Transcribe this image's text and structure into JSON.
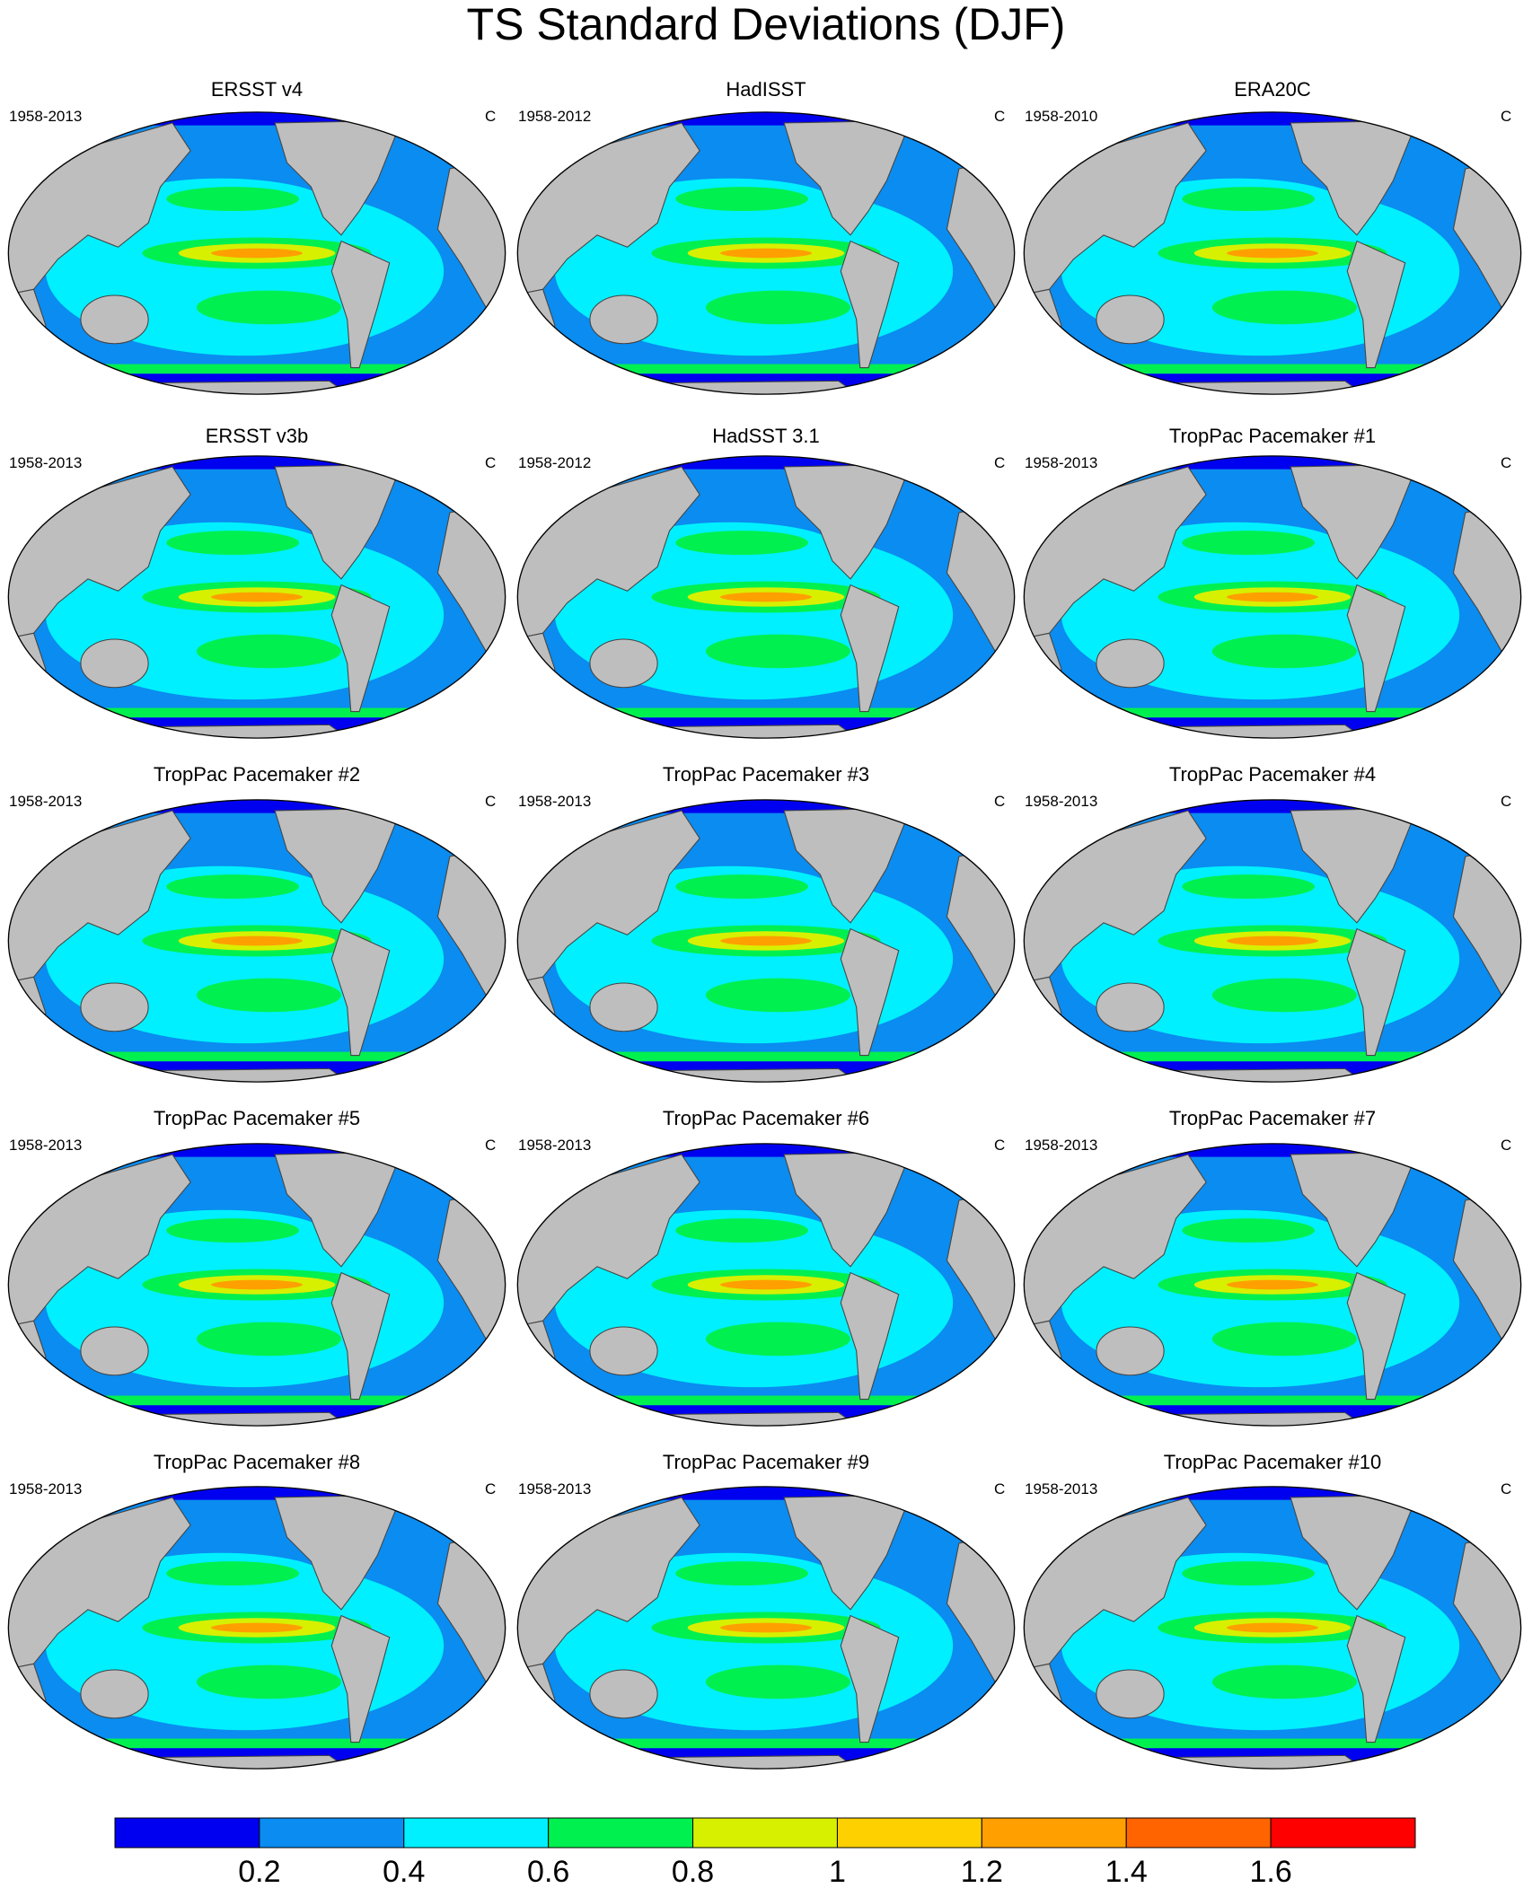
{
  "title": "TS Standard Deviations (DJF)",
  "panels": [
    {
      "title": "ERSST v4",
      "years": "1958-2013",
      "units": "C"
    },
    {
      "title": "HadISST",
      "years": "1958-2012",
      "units": "C"
    },
    {
      "title": "ERA20C",
      "years": "1958-2010",
      "units": "C"
    },
    {
      "title": "ERSST v3b",
      "years": "1958-2013",
      "units": "C"
    },
    {
      "title": "HadSST 3.1",
      "years": "1958-2012",
      "units": "C"
    },
    {
      "title": "TropPac Pacemaker #1",
      "years": "1958-2013",
      "units": "C"
    },
    {
      "title": "TropPac Pacemaker #2",
      "years": "1958-2013",
      "units": "C"
    },
    {
      "title": "TropPac Pacemaker #3",
      "years": "1958-2013",
      "units": "C"
    },
    {
      "title": "TropPac Pacemaker #4",
      "years": "1958-2013",
      "units": "C"
    },
    {
      "title": "TropPac Pacemaker #5",
      "years": "1958-2013",
      "units": "C"
    },
    {
      "title": "TropPac Pacemaker #6",
      "years": "1958-2013",
      "units": "C"
    },
    {
      "title": "TropPac Pacemaker #7",
      "years": "1958-2013",
      "units": "C"
    },
    {
      "title": "TropPac Pacemaker #8",
      "years": "1958-2013",
      "units": "C"
    },
    {
      "title": "TropPac Pacemaker #9",
      "years": "1958-2013",
      "units": "C"
    },
    {
      "title": "TropPac Pacemaker #10",
      "years": "1958-2013",
      "units": "C"
    }
  ],
  "colorbar": {
    "colors": [
      "#0000f0",
      "#0a8cf0",
      "#00f0ff",
      "#00f050",
      "#d7f000",
      "#ffd000",
      "#ffa000",
      "#ff6400",
      "#ff0000"
    ],
    "ticks": [
      0.2,
      0.4,
      0.6,
      0.8,
      1,
      1.2,
      1.4,
      1.6
    ]
  }
}
